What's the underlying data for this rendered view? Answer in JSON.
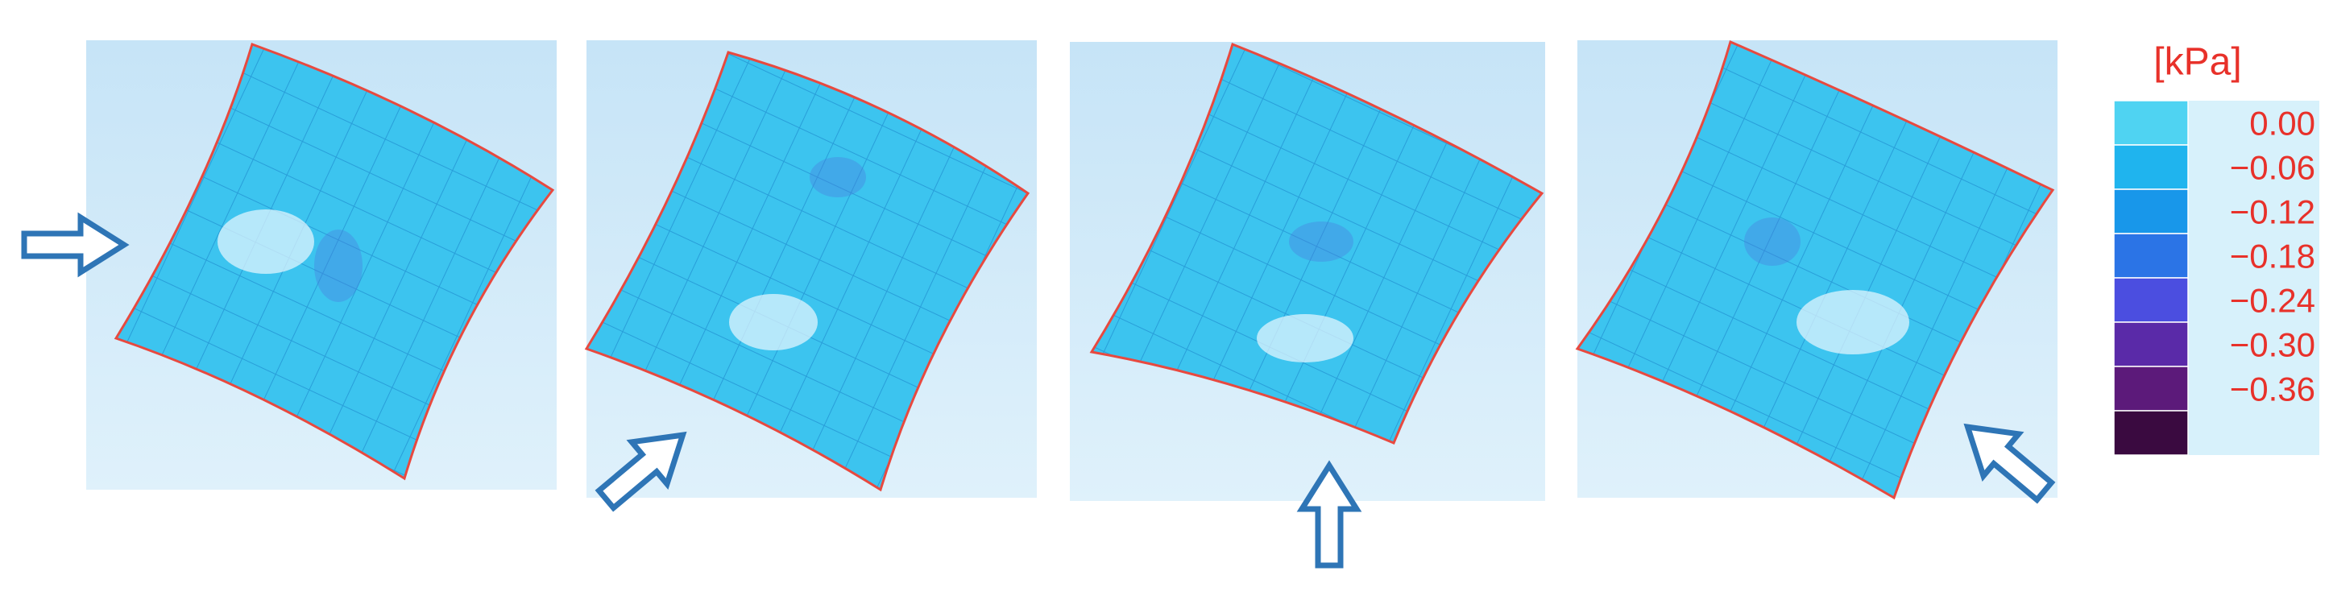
{
  "legend": {
    "title": "[kPa]",
    "labels": [
      "0.00",
      "−0.06",
      "−0.12",
      "−0.18",
      "−0.24",
      "−0.30",
      "−0.36"
    ],
    "colors": [
      "#4fd3f2",
      "#1fb4ee",
      "#1897ea",
      "#2b74e6",
      "#4b4ee0",
      "#5a2aa8",
      "#5c1a7a",
      "#3a0a40"
    ]
  }
}
